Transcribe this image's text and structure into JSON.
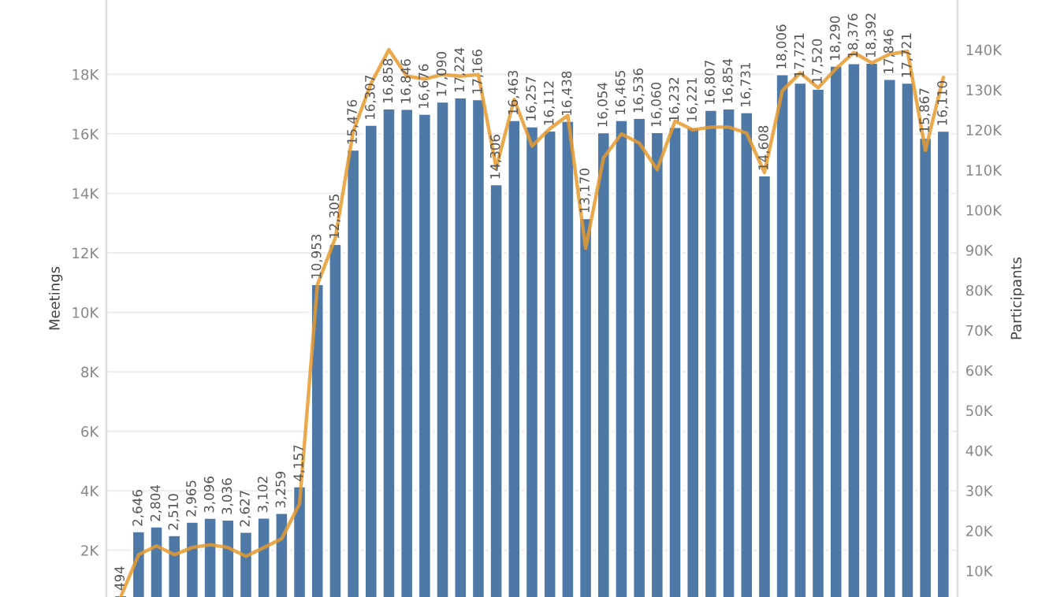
{
  "chart_data": {
    "type": "bar",
    "xlabel": null,
    "ylabel": "Meetings",
    "y2label": "Participants",
    "categories": [
      null,
      null,
      null,
      null,
      null,
      null,
      null,
      null,
      null,
      null,
      null,
      null,
      null,
      null,
      null,
      null,
      null,
      null,
      null,
      null,
      null,
      null,
      null,
      null,
      null,
      null,
      null,
      null,
      null,
      null,
      null,
      null,
      null,
      null,
      null,
      null,
      null,
      null,
      null,
      null,
      null,
      null,
      null,
      null,
      null,
      null,
      null
    ],
    "series": [
      {
        "name": null,
        "color": "#4e79a7",
        "values": [
          494,
          2646,
          2804,
          2510,
          2965,
          3096,
          3036,
          2627,
          3102,
          3259,
          4157,
          10953,
          12305,
          15476,
          16307,
          16858,
          16846,
          16676,
          17090,
          17224,
          17166,
          14306,
          16463,
          16257,
          16112,
          16438,
          13170,
          16054,
          16465,
          16536,
          16060,
          16232,
          16221,
          16807,
          16854,
          16731,
          14608,
          18006,
          17721,
          17520,
          18290,
          18376,
          18392,
          17846,
          17721,
          15867,
          16110
        ],
        "value_labels": [
          "494",
          "2,646",
          "2,804",
          "2,510",
          "2,965",
          "3,096",
          "3,036",
          "2,627",
          "3,102",
          "3,259",
          "4,157",
          "10,953",
          "12,305",
          "15,476",
          "16,307",
          "16,858",
          "16,846",
          "16,676",
          "17,090",
          "17,224",
          "17,166",
          "14,306",
          "16,463",
          "16,257",
          "16,112",
          "16,438",
          "13,170",
          "16,054",
          "16,465",
          "16,536",
          "16,060",
          "16,232",
          "16,221",
          "16,807",
          "16,854",
          "16,731",
          "14,608",
          "18,006",
          "17,721",
          "17,520",
          "18,290",
          "18,376",
          "18,392",
          "17,846",
          "17,721",
          "15,867",
          "16,110"
        ]
      },
      {
        "name": null,
        "type": "line",
        "axis": "y2",
        "color": "#e69a2e",
        "values": [
          3500,
          14000,
          16200,
          14000,
          15800,
          16500,
          15800,
          13600,
          15800,
          18000,
          26700,
          81400,
          93000,
          119600,
          131600,
          140000,
          133400,
          132700,
          133800,
          133400,
          133800,
          110500,
          127600,
          116000,
          120300,
          123600,
          90500,
          113000,
          119000,
          116700,
          110100,
          122200,
          120000,
          120700,
          120700,
          119200,
          109400,
          129800,
          134200,
          130500,
          135300,
          139300,
          136700,
          138900,
          139600,
          114900,
          133100
        ]
      }
    ],
    "ylim": [
      430,
      20500
    ],
    "yticks": [
      {
        "value": 2000,
        "label": "2K"
      },
      {
        "value": 4000,
        "label": "4K"
      },
      {
        "value": 6000,
        "label": "6K"
      },
      {
        "value": 8000,
        "label": "8K"
      },
      {
        "value": 10000,
        "label": "10K"
      },
      {
        "value": 12000,
        "label": "12K"
      },
      {
        "value": 14000,
        "label": "14K"
      },
      {
        "value": 16000,
        "label": "16K"
      },
      {
        "value": 18000,
        "label": "18K"
      }
    ],
    "y2lim": [
      3450,
      152410
    ],
    "y2ticks": [
      {
        "value": 10000,
        "label": "10K"
      },
      {
        "value": 20000,
        "label": "20K"
      },
      {
        "value": 30000,
        "label": "30K"
      },
      {
        "value": 40000,
        "label": "40K"
      },
      {
        "value": 50000,
        "label": "50K"
      },
      {
        "value": 60000,
        "label": "60K"
      },
      {
        "value": 70000,
        "label": "70K"
      },
      {
        "value": 80000,
        "label": "80K"
      },
      {
        "value": 90000,
        "label": "90K"
      },
      {
        "value": 100000,
        "label": "100K"
      },
      {
        "value": 110000,
        "label": "110K"
      },
      {
        "value": 120000,
        "label": "120K"
      },
      {
        "value": 130000,
        "label": "130K"
      },
      {
        "value": 140000,
        "label": "140K"
      }
    ],
    "grid": "y",
    "legend": false,
    "tick_labels": "y",
    "line_style": "solid",
    "marker": "none"
  }
}
